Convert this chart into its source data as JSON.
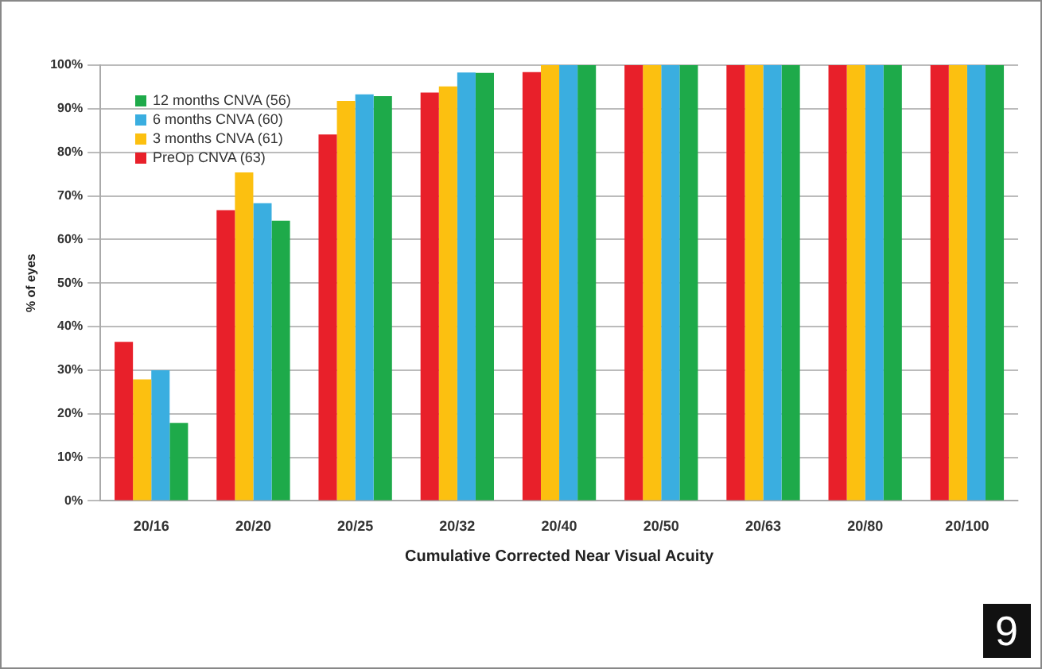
{
  "chart_data": {
    "type": "bar",
    "xlabel": "Cumulative Corrected Near Visual Acuity",
    "ylabel": "% of eyes",
    "categories": [
      "20/16",
      "20/20",
      "20/25",
      "20/32",
      "20/40",
      "20/50",
      "20/63",
      "20/80",
      "20/100"
    ],
    "series": [
      {
        "name": "PreOp CNVA (63)",
        "color": "#e8202a",
        "values": [
          36.5,
          66.7,
          84.1,
          93.7,
          98.4,
          100,
          100,
          100,
          100
        ]
      },
      {
        "name": "3 months CNVA (61)",
        "color": "#fcc010",
        "values": [
          27.9,
          75.4,
          91.8,
          95.1,
          100,
          100,
          100,
          100,
          100
        ]
      },
      {
        "name": "6 months CNVA (60)",
        "color": "#3aaee0",
        "values": [
          30,
          68.3,
          93.3,
          98.3,
          100,
          100,
          100,
          100,
          100
        ]
      },
      {
        "name": "12 months CNVA (56)",
        "color": "#1eaa4a",
        "values": [
          17.9,
          64.3,
          92.9,
          98.2,
          100,
          100,
          100,
          100,
          100
        ]
      }
    ],
    "ylim": [
      0,
      100
    ],
    "yticks": [
      {
        "value": 0,
        "label": "0%"
      },
      {
        "value": 10,
        "label": "10%"
      },
      {
        "value": 20,
        "label": "20%"
      },
      {
        "value": 30,
        "label": "30%"
      },
      {
        "value": 40,
        "label": "40%"
      },
      {
        "value": 50,
        "label": "50%"
      },
      {
        "value": 60,
        "label": "60%"
      },
      {
        "value": 70,
        "label": "70%"
      },
      {
        "value": 80,
        "label": "80%"
      },
      {
        "value": 90,
        "label": "90%"
      },
      {
        "value": 100,
        "label": "100%"
      }
    ],
    "grid": "y",
    "legend": "top left",
    "annotations": [
      "9"
    ]
  }
}
